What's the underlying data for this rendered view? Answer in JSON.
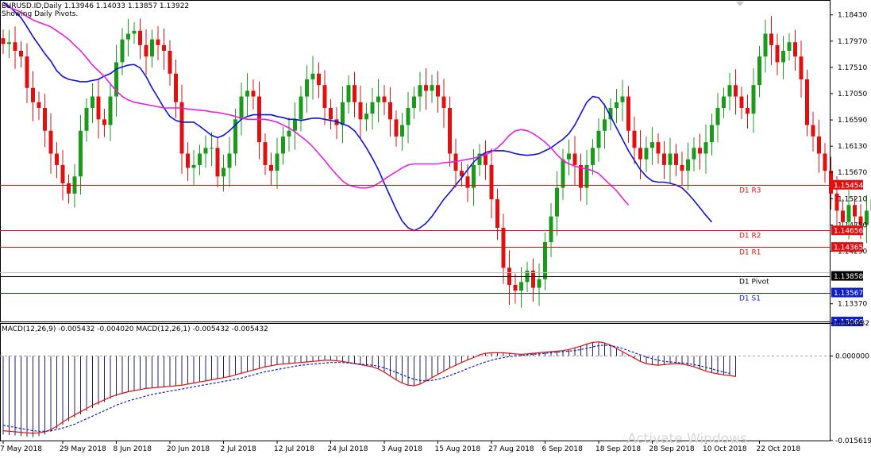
{
  "header": {
    "symbol_line": "EURUSD.ID,Daily  1.13946 1.14033 1.13857 1.13922",
    "subtitle": "Showing Daily Pivots.",
    "macd_label": "MACD(12,26,9) -0.005432 -0.004020 MACD(12,26,1) -0.005432 -0.005432"
  },
  "watermark": "Activate Windows",
  "colors": {
    "bull": "#1a9a1a",
    "bear": "#e01010",
    "ma_fast": "#0a14d6",
    "ma_slow": "#e81ee0",
    "pivot_red": "#e01010",
    "pivot_black": "#000000",
    "pivot_blue": "#1020c8",
    "macd_signal": "#e01010",
    "macd_dash": "#1020c8"
  },
  "chart_data": [
    {
      "type": "candlestick",
      "symbol": "EURUSD.ID",
      "timeframe": "Daily",
      "y_ticks": [
        1.1843,
        1.1797,
        1.1751,
        1.1705,
        1.1659,
        1.1613,
        1.1567,
        1.1521,
        1.1475,
        1.1429,
        1.1337
      ],
      "ylim": [
        1.1306,
        1.1869
      ],
      "x_labels": [
        "7 May 2018",
        "29 May 2018",
        "8 Jun 2018",
        "20 Jun 2018",
        "2 Jul 2018",
        "12 Jul 2018",
        "24 Jul 2018",
        "3 Aug 2018",
        "15 Aug 2018",
        "27 Aug 2018",
        "6 Sep 2018",
        "18 Sep 2018",
        "28 Sep 2018",
        "10 Oct 2018",
        "22 Oct 2018"
      ],
      "x_label_bar_index": [
        0,
        10,
        19,
        28,
        37,
        46,
        55,
        64,
        73,
        82,
        91,
        100,
        109,
        118,
        127
      ],
      "close_series": [
        1.1792,
        1.1795,
        1.178,
        1.177,
        1.1715,
        1.169,
        1.168,
        1.164,
        1.16,
        1.158,
        1.1548,
        1.153,
        1.156,
        1.164,
        1.168,
        1.17,
        1.166,
        1.165,
        1.17,
        1.176,
        1.18,
        1.181,
        1.1815,
        1.179,
        1.177,
        1.18,
        1.179,
        1.178,
        1.174,
        1.169,
        1.16,
        1.1575,
        1.158,
        1.16,
        1.161,
        1.161,
        1.156,
        1.1575,
        1.16,
        1.166,
        1.17,
        1.171,
        1.17,
        1.162,
        1.158,
        1.157,
        1.16,
        1.163,
        1.164,
        1.166,
        1.17,
        1.173,
        1.174,
        1.172,
        1.168,
        1.166,
        1.165,
        1.169,
        1.172,
        1.169,
        1.166,
        1.167,
        1.169,
        1.17,
        1.169,
        1.166,
        1.163,
        1.165,
        1.168,
        1.17,
        1.172,
        1.171,
        1.172,
        1.17,
        1.168,
        1.16,
        1.157,
        1.156,
        1.154,
        1.158,
        1.16,
        1.158,
        1.152,
        1.147,
        1.14,
        1.137,
        1.136,
        1.1375,
        1.1395,
        1.1365,
        1.138,
        1.1445,
        1.149,
        1.154,
        1.159,
        1.16,
        1.158,
        1.154,
        1.158,
        1.161,
        1.164,
        1.166,
        1.168,
        1.169,
        1.17,
        1.164,
        1.161,
        1.159,
        1.161,
        1.162,
        1.16,
        1.158,
        1.16,
        1.158,
        1.157,
        1.159,
        1.161,
        1.16,
        1.162,
        1.165,
        1.168,
        1.17,
        1.172,
        1.17,
        1.168,
        1.167,
        1.172,
        1.177,
        1.181,
        1.179,
        1.176,
        1.178,
        1.1795,
        1.177,
        1.173,
        1.165,
        1.163,
        1.16,
        1.157,
        1.153,
        1.15,
        1.148,
        1.151,
        1.149,
        1.1475,
        1.15,
        1.152,
        1.156,
        1.159,
        1.157,
        1.156,
        1.154,
        1.15,
        1.147,
        1.148,
        1.146,
        1.147,
        1.144,
        1.14,
        1.1395,
        1.1392
      ],
      "series": [
        {
          "name": "",
          "kind": "ma",
          "color": "#0a14d6",
          "values": [
            1.1865,
            1.1858,
            1.1848,
            1.1838,
            1.1822,
            1.1805,
            1.179,
            1.1775,
            1.1762,
            1.1745,
            1.1735,
            1.173,
            1.1728,
            1.1726,
            1.1726,
            1.1728,
            1.173,
            1.1736,
            1.174,
            1.1748,
            1.1752,
            1.1755,
            1.1756,
            1.175,
            1.1735,
            1.1715,
            1.1698,
            1.168,
            1.1665,
            1.1658,
            1.1655,
            1.1655,
            1.1655,
            1.1648,
            1.164,
            1.1632,
            1.1628,
            1.1632,
            1.164,
            1.165,
            1.166,
            1.1665,
            1.1668,
            1.1668,
            1.1668,
            1.1668,
            1.1665,
            1.1663,
            1.166,
            1.166,
            1.1658,
            1.166,
            1.1662,
            1.1662,
            1.166,
            1.1658,
            1.1656,
            1.1652,
            1.1648,
            1.164,
            1.1626,
            1.161,
            1.1592,
            1.1572,
            1.1548,
            1.1525,
            1.1502,
            1.1482,
            1.147,
            1.1465,
            1.147,
            1.1478,
            1.149,
            1.1505,
            1.152,
            1.1532,
            1.1545,
            1.1558,
            1.1572,
            1.1585,
            1.1595,
            1.1602,
            1.1605,
            1.1605,
            1.1605,
            1.1603,
            1.16,
            1.1598,
            1.1597,
            1.1598,
            1.16,
            1.1605,
            1.161,
            1.1618,
            1.1625,
            1.1635,
            1.165,
            1.167,
            1.169,
            1.17,
            1.1698,
            1.1685,
            1.1665,
            1.1645,
            1.1625,
            1.1605,
            1.1588,
            1.1572,
            1.156,
            1.1552,
            1.155,
            1.155,
            1.1548,
            1.1545,
            1.154,
            1.153,
            1.1518,
            1.1505,
            1.1492,
            1.148
          ]
        },
        {
          "name": "",
          "kind": "ma",
          "color": "#e81ee0",
          "values": [
            1.186,
            1.1856,
            1.1852,
            1.1848,
            1.184,
            1.1834,
            1.183,
            1.1826,
            1.1822,
            1.1815,
            1.1808,
            1.18,
            1.179,
            1.178,
            1.1768,
            1.1755,
            1.1745,
            1.1735,
            1.1722,
            1.171,
            1.17,
            1.1694,
            1.169,
            1.1688,
            1.1686,
            1.1684,
            1.1682,
            1.168,
            1.168,
            1.168,
            1.168,
            1.1678,
            1.1677,
            1.1676,
            1.1675,
            1.1673,
            1.1672,
            1.167,
            1.1668,
            1.1665,
            1.1662,
            1.166,
            1.166,
            1.166,
            1.166,
            1.1658,
            1.1655,
            1.165,
            1.1645,
            1.1638,
            1.163,
            1.1622,
            1.1612,
            1.16,
            1.1588,
            1.1575,
            1.1563,
            1.1552,
            1.1545,
            1.1542,
            1.154,
            1.154,
            1.1542,
            1.1548,
            1.1555,
            1.1562,
            1.1568,
            1.1575,
            1.158,
            1.1582,
            1.1582,
            1.1582,
            1.1582,
            1.1582,
            1.1584,
            1.1585,
            1.1586,
            1.1588,
            1.159,
            1.1592,
            1.1595,
            1.1598,
            1.1603,
            1.161,
            1.162,
            1.1632,
            1.164,
            1.1642,
            1.164,
            1.1635,
            1.1628,
            1.162,
            1.161,
            1.1598,
            1.1588,
            1.1582,
            1.1578,
            1.1575,
            1.1573,
            1.157,
            1.1565,
            1.1555,
            1.1545,
            1.1535,
            1.1522,
            1.151
          ]
        }
      ],
      "price_labels": [
        {
          "text": "1.15454",
          "value": 1.15454,
          "bg": "#e01010",
          "fg": "#ffffff"
        },
        {
          "text": "1.14656",
          "value": 1.14656,
          "bg": "#e01010",
          "fg": "#ffffff"
        },
        {
          "text": "1.14365",
          "value": 1.14365,
          "bg": "#e01010",
          "fg": "#ffffff"
        },
        {
          "text": "1.13858",
          "value": 1.13858,
          "bg": "#000000",
          "fg": "#ffffff"
        },
        {
          "text": "1.13567",
          "value": 1.13567,
          "bg": "#1020c8",
          "fg": "#ffffff"
        },
        {
          "text": "1.13060",
          "value": 1.1306,
          "bg": "#1020c8",
          "fg": "#ffffff"
        }
      ],
      "pivots": [
        {
          "label": "D1 R3",
          "value": 1.15454,
          "color": "#e01010"
        },
        {
          "label": "D1 R2",
          "value": 1.14656,
          "color": "#e01010"
        },
        {
          "label": "D1 R1",
          "value": 1.14365,
          "color": "#e01010"
        },
        {
          "label": "D1 Pivot",
          "value": 1.13858,
          "color": "#000000"
        },
        {
          "label": "D1 S1",
          "value": 1.13567,
          "color": "#1020c8"
        }
      ]
    },
    {
      "type": "bar",
      "title": "MACD(12,26,9) -0.005432 -0.004020 MACD(12,26,1) -0.005432 -0.005432",
      "y_ticks": [
        0.006082,
        0.0,
        -0.015619
      ],
      "ylim": [
        -0.015619,
        0.006082
      ],
      "series": [
        {
          "name": "",
          "kind": "histogram",
          "values": [
            -0.0145,
            -0.0146,
            -0.0147,
            -0.0148,
            -0.0149,
            -0.015,
            -0.0148,
            -0.0145,
            -0.014,
            -0.0134,
            -0.0127,
            -0.012,
            -0.0114,
            -0.0108,
            -0.0102,
            -0.0096,
            -0.009,
            -0.0085,
            -0.0079,
            -0.0074,
            -0.007,
            -0.0067,
            -0.0064,
            -0.0062,
            -0.006,
            -0.0059,
            -0.0058,
            -0.0057,
            -0.0056,
            -0.0055,
            -0.0054,
            -0.0052,
            -0.005,
            -0.0048,
            -0.0046,
            -0.0044,
            -0.0042,
            -0.004,
            -0.0038,
            -0.0035,
            -0.0032,
            -0.0029,
            -0.0026,
            -0.0023,
            -0.002,
            -0.0018,
            -0.0016,
            -0.0015,
            -0.0014,
            -0.0013,
            -0.0012,
            -0.0011,
            -0.001,
            -0.0009,
            -0.0008,
            -0.0008,
            -0.0009,
            -0.001,
            -0.0012,
            -0.0014,
            -0.0016,
            -0.0018,
            -0.002,
            -0.0024,
            -0.003,
            -0.0037,
            -0.0044,
            -0.005,
            -0.0054,
            -0.0055,
            -0.0052,
            -0.0046,
            -0.004,
            -0.0034,
            -0.0028,
            -0.0022,
            -0.0017,
            -0.0012,
            -0.0007,
            -0.0003,
            0.0002,
            0.0005,
            0.0006,
            0.0006,
            0.0006,
            0.0005,
            0.0004,
            0.0003,
            0.0004,
            0.0005,
            0.0006,
            0.0007,
            0.0008,
            0.0009,
            0.001,
            0.0012,
            0.0015,
            0.0018,
            0.0022,
            0.0025,
            0.0026,
            0.0024,
            0.002,
            0.0014,
            0.0008,
            0.0002,
            -0.0004,
            -0.001,
            -0.0014,
            -0.0016,
            -0.0017,
            -0.0016,
            -0.0015,
            -0.0014,
            -0.0015,
            -0.0017,
            -0.002,
            -0.0024,
            -0.0028,
            -0.0031,
            -0.0033,
            -0.0035,
            -0.0036,
            -0.0038
          ]
        },
        {
          "name": "",
          "kind": "line",
          "color": "#e01010",
          "values": [
            -0.0138,
            -0.0139,
            -0.014,
            -0.0141,
            -0.0142,
            -0.0143,
            -0.0142,
            -0.014,
            -0.0136,
            -0.013,
            -0.0122,
            -0.0115,
            -0.0109,
            -0.0103,
            -0.0097,
            -0.0091,
            -0.0086,
            -0.0081,
            -0.0076,
            -0.0072,
            -0.0069,
            -0.0066,
            -0.0064,
            -0.0062,
            -0.006,
            -0.0059,
            -0.0058,
            -0.0057,
            -0.0056,
            -0.0055,
            -0.0054,
            -0.0052,
            -0.005,
            -0.0048,
            -0.0046,
            -0.0044,
            -0.0042,
            -0.004,
            -0.0038,
            -0.0035,
            -0.0032,
            -0.0029,
            -0.0026,
            -0.0023,
            -0.002,
            -0.0018,
            -0.0016,
            -0.0015,
            -0.0014,
            -0.0013,
            -0.0012,
            -0.0011,
            -0.001,
            -0.0009,
            -0.0008,
            -0.0008,
            -0.0009,
            -0.001,
            -0.0012,
            -0.0014,
            -0.0016,
            -0.0018,
            -0.002,
            -0.0024,
            -0.003,
            -0.0037,
            -0.0044,
            -0.005,
            -0.0054,
            -0.0055,
            -0.0052,
            -0.0046,
            -0.004,
            -0.0034,
            -0.0028,
            -0.0022,
            -0.0017,
            -0.0012,
            -0.0007,
            -0.0003,
            0.0002,
            0.0005,
            0.0006,
            0.0006,
            0.0006,
            0.0005,
            0.0004,
            0.0003,
            0.0004,
            0.0005,
            0.0006,
            0.0007,
            0.0008,
            0.0009,
            0.001,
            0.0012,
            0.0015,
            0.0018,
            0.0022,
            0.0025,
            0.0026,
            0.0024,
            0.002,
            0.0014,
            0.0008,
            0.0002,
            -0.0004,
            -0.001,
            -0.0014,
            -0.0016,
            -0.0017,
            -0.0016,
            -0.0015,
            -0.0014,
            -0.0015,
            -0.0017,
            -0.002,
            -0.0024,
            -0.0028,
            -0.0031,
            -0.0033,
            -0.0035,
            -0.0036,
            -0.0038
          ]
        },
        {
          "name": "",
          "kind": "line",
          "color": "#1020c8",
          "dash": true,
          "values": [
            -0.0128,
            -0.013,
            -0.0132,
            -0.0134,
            -0.0136,
            -0.0138,
            -0.0139,
            -0.0139,
            -0.0138,
            -0.0136,
            -0.0133,
            -0.013,
            -0.0126,
            -0.0121,
            -0.0116,
            -0.0111,
            -0.0106,
            -0.0101,
            -0.0096,
            -0.0091,
            -0.0087,
            -0.0083,
            -0.008,
            -0.0077,
            -0.0074,
            -0.0071,
            -0.0069,
            -0.0067,
            -0.0065,
            -0.0063,
            -0.0061,
            -0.0059,
            -0.0057,
            -0.0055,
            -0.0053,
            -0.0051,
            -0.0049,
            -0.0047,
            -0.0045,
            -0.0043,
            -0.0041,
            -0.0038,
            -0.0035,
            -0.0032,
            -0.0029,
            -0.0027,
            -0.0025,
            -0.0023,
            -0.0021,
            -0.0019,
            -0.0017,
            -0.0016,
            -0.0015,
            -0.0014,
            -0.0013,
            -0.0012,
            -0.0012,
            -0.0012,
            -0.0013,
            -0.0014,
            -0.0015,
            -0.0016,
            -0.0017,
            -0.0019,
            -0.0022,
            -0.0026,
            -0.003,
            -0.0035,
            -0.0039,
            -0.0043,
            -0.0045,
            -0.0046,
            -0.0045,
            -0.0043,
            -0.004,
            -0.0036,
            -0.0032,
            -0.0028,
            -0.0023,
            -0.0019,
            -0.0015,
            -0.0011,
            -0.0008,
            -0.0005,
            -0.0003,
            -0.0001,
            0.0,
            0.0001,
            0.0002,
            0.0003,
            0.0004,
            0.0005,
            0.0006,
            0.0007,
            0.0008,
            0.0009,
            0.001,
            0.0012,
            0.0014,
            0.0017,
            0.0019,
            0.002,
            0.0019,
            0.0017,
            0.0014,
            0.001,
            0.0006,
            0.0002,
            -0.0002,
            -0.0005,
            -0.0008,
            -0.001,
            -0.0011,
            -0.0012,
            -0.0013,
            -0.0014,
            -0.0016,
            -0.0018,
            -0.0021,
            -0.0024,
            -0.0027,
            -0.003,
            -0.0032
          ]
        }
      ]
    }
  ]
}
